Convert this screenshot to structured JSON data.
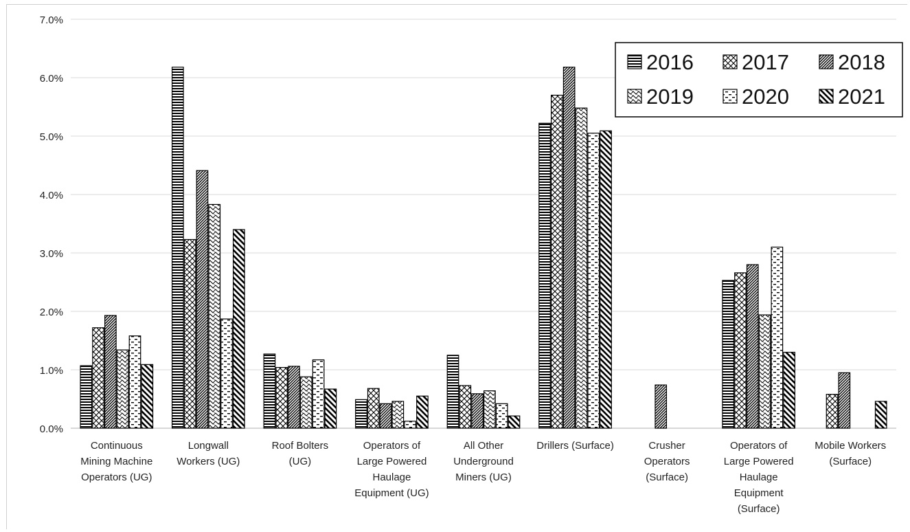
{
  "chart_data": {
    "type": "bar",
    "y_ticks": [
      "0.0%",
      "1.0%",
      "2.0%",
      "3.0%",
      "4.0%",
      "5.0%",
      "6.0%",
      "7.0%"
    ],
    "ylim": [
      0,
      7
    ],
    "grid": true,
    "legend_position": "top-right",
    "categories": [
      [
        "Continuous",
        "Mining Machine",
        "Operators (UG)"
      ],
      [
        "Longwall",
        "Workers (UG)"
      ],
      [
        "Roof Bolters",
        "(UG)"
      ],
      [
        "Operators of",
        "Large Powered",
        "Haulage",
        "Equipment (UG)"
      ],
      [
        "All Other",
        "Underground",
        "Miners (UG)"
      ],
      [
        "Drillers (Surface)"
      ],
      [
        "Crusher",
        "Operators",
        "(Surface)"
      ],
      [
        "Operators of",
        "Large Powered",
        "Haulage",
        "Equipment",
        "(Surface)"
      ],
      [
        "Mobile Workers",
        "(Surface)"
      ]
    ],
    "series": [
      {
        "name": "2016",
        "pattern": "horizontal",
        "values": [
          1.07,
          6.18,
          1.27,
          0.49,
          1.25,
          5.22,
          null,
          2.53,
          null
        ]
      },
      {
        "name": "2017",
        "pattern": "crosshatch",
        "values": [
          1.72,
          3.23,
          1.04,
          0.68,
          0.73,
          5.7,
          null,
          2.66,
          0.58
        ]
      },
      {
        "name": "2018",
        "pattern": "dense-diagonal",
        "values": [
          1.93,
          4.41,
          1.06,
          0.42,
          0.59,
          6.18,
          0.74,
          2.8,
          0.95
        ]
      },
      {
        "name": "2019",
        "pattern": "wave",
        "values": [
          1.34,
          3.83,
          0.88,
          0.46,
          0.64,
          5.48,
          null,
          1.94,
          null
        ]
      },
      {
        "name": "2020",
        "pattern": "dashed",
        "values": [
          1.58,
          1.87,
          1.17,
          0.12,
          0.42,
          5.05,
          null,
          3.1,
          null
        ]
      },
      {
        "name": "2021",
        "pattern": "wide-diagonal",
        "values": [
          1.09,
          3.4,
          0.67,
          0.55,
          0.21,
          5.09,
          null,
          1.3,
          0.46
        ]
      }
    ]
  }
}
